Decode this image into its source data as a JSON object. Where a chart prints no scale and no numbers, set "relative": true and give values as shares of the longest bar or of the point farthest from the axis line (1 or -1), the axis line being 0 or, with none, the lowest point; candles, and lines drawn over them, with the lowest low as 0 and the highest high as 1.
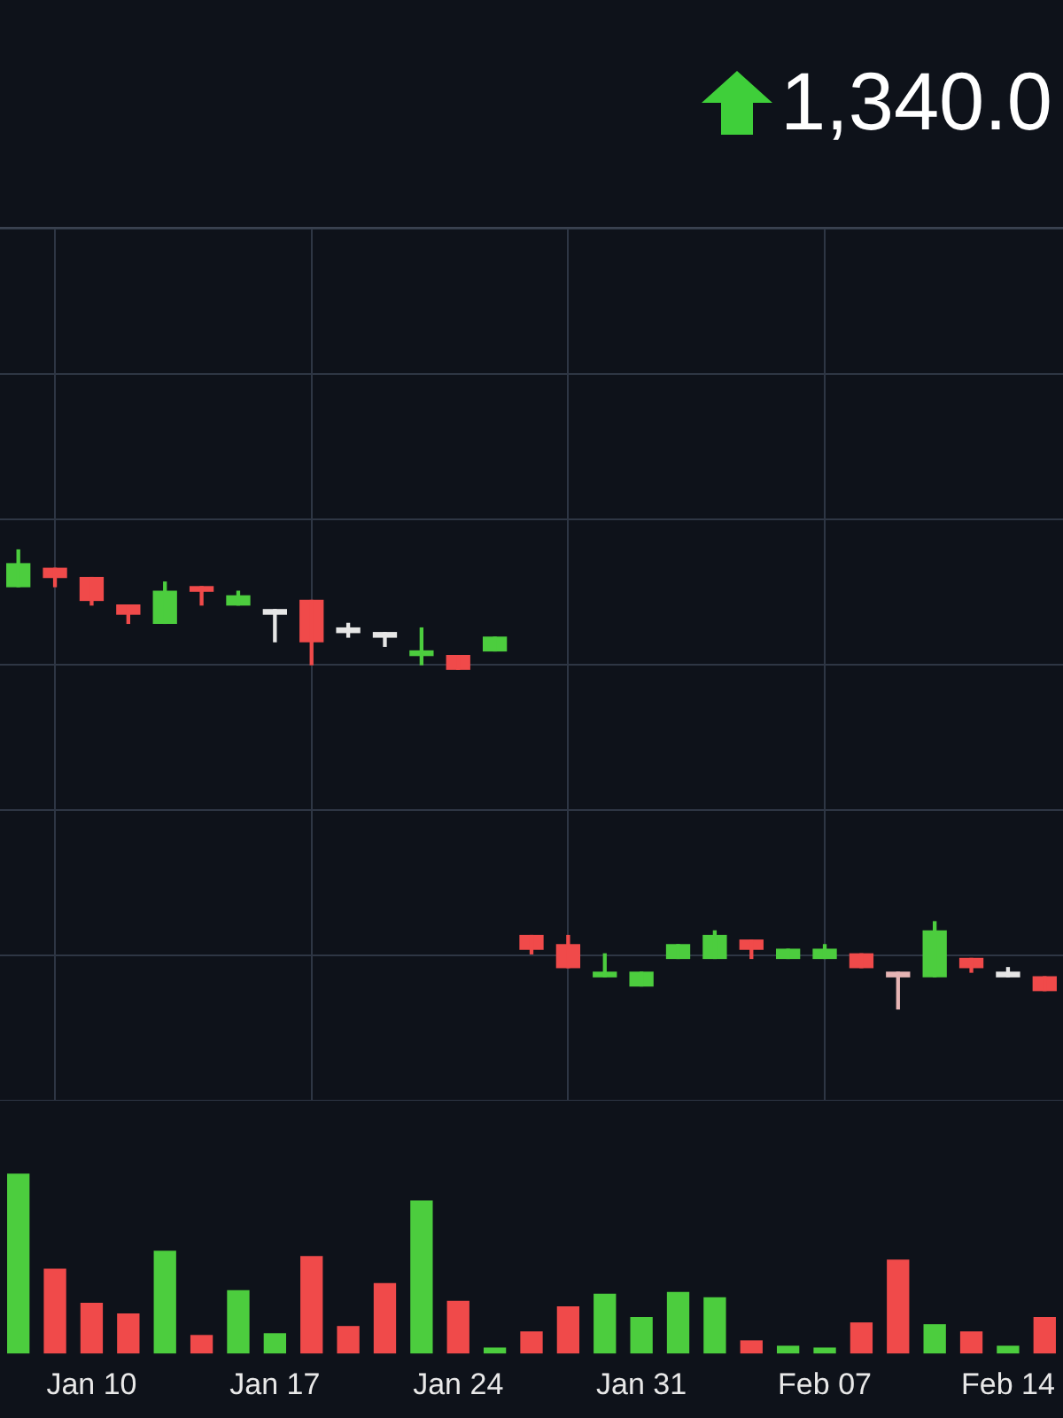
{
  "chart_data": [
    {
      "type": "candlestick",
      "annotations": [
        "1,340.0"
      ],
      "categories": [
        null,
        null,
        null,
        null,
        null,
        null,
        null,
        null,
        null,
        null,
        null,
        null,
        null,
        null,
        null,
        null,
        null,
        null,
        null,
        null,
        null,
        null,
        null,
        null,
        null,
        null,
        null,
        null,
        null
      ],
      "ohlc": [
        [
          0.92,
          1.0,
          0.92,
          0.97
        ],
        [
          0.96,
          0.96,
          0.92,
          0.94
        ],
        [
          0.94,
          0.94,
          0.88,
          0.89
        ],
        [
          0.88,
          0.88,
          0.84,
          0.86
        ],
        [
          0.84,
          0.93,
          0.84,
          0.91
        ],
        [
          0.92,
          0.92,
          0.88,
          0.91
        ],
        [
          0.88,
          0.91,
          0.88,
          0.9
        ],
        [
          0.87,
          0.87,
          0.8,
          0.86
        ],
        [
          0.89,
          0.89,
          0.75,
          0.8
        ],
        [
          0.83,
          0.84,
          0.81,
          0.82
        ],
        [
          0.82,
          0.82,
          0.79,
          0.81
        ],
        [
          0.77,
          0.83,
          0.75,
          0.78
        ],
        [
          0.77,
          0.77,
          0.74,
          0.74
        ],
        [
          0.78,
          0.81,
          0.78,
          0.81
        ],
        [
          0.16,
          0.16,
          0.12,
          0.13
        ],
        [
          0.14,
          0.16,
          0.09,
          0.09
        ],
        [
          0.07,
          0.12,
          0.07,
          0.08
        ],
        [
          0.05,
          0.08,
          0.05,
          0.08
        ],
        [
          0.11,
          0.14,
          0.11,
          0.14
        ],
        [
          0.11,
          0.17,
          0.11,
          0.16
        ],
        [
          0.15,
          0.15,
          0.11,
          0.13
        ],
        [
          0.11,
          0.13,
          0.11,
          0.13
        ],
        [
          0.11,
          0.14,
          0.11,
          0.13
        ],
        [
          0.12,
          0.12,
          0.09,
          0.09
        ],
        [
          0.08,
          0.08,
          0.0,
          0.07
        ],
        [
          0.07,
          0.19,
          0.07,
          0.17
        ],
        [
          0.11,
          0.11,
          0.08,
          0.09
        ],
        [
          0.08,
          0.09,
          0.07,
          0.07
        ],
        [
          0.07,
          0.07,
          0.04,
          0.04
        ]
      ],
      "colors": [
        "#4ccd3e",
        "#f04a4a",
        "#f04a4a",
        "#f04a4a",
        "#4ccd3e",
        "#f04a4a",
        "#4ccd3e",
        "#e6e6e6",
        "#f04a4a",
        "#e6e6e6",
        "#e6e6e6",
        "#4ccd3e",
        "#f04a4a",
        "#4ccd3e",
        "#f04a4a",
        "#f04a4a",
        "#4ccd3e",
        "#4ccd3e",
        "#4ccd3e",
        "#4ccd3e",
        "#f04a4a",
        "#4ccd3e",
        "#4ccd3e",
        "#f04a4a",
        "#e6b4b4",
        "#4ccd3e",
        "#f04a4a",
        "#e6e6e6",
        "#f04a4a"
      ],
      "relative": true,
      "grid": true,
      "tick_labels": false
    },
    {
      "type": "bar",
      "categories": [
        null,
        null,
        "Jan 10",
        null,
        null,
        null,
        null,
        "Jan 17",
        null,
        null,
        null,
        null,
        "Jan 24",
        null,
        null,
        null,
        null,
        "Jan 31",
        null,
        null,
        null,
        null,
        "Feb 07",
        null,
        null,
        null,
        null,
        "Feb 14",
        null
      ],
      "values": [
        1.0,
        0.47,
        0.28,
        0.22,
        0.57,
        0.1,
        0.35,
        0.11,
        0.54,
        0.15,
        0.39,
        0.85,
        0.29,
        0.03,
        0.12,
        0.26,
        0.33,
        0.2,
        0.34,
        0.31,
        0.07,
        0.04,
        0.03,
        0.17,
        0.52,
        0.16,
        0.12,
        0.04,
        0.2
      ],
      "colors": [
        "#4ccd3e",
        "#f04a4a",
        "#f04a4a",
        "#f04a4a",
        "#4ccd3e",
        "#f04a4a",
        "#4ccd3e",
        "#4ccd3e",
        "#f04a4a",
        "#f04a4a",
        "#f04a4a",
        "#4ccd3e",
        "#f04a4a",
        "#4ccd3e",
        "#f04a4a",
        "#f04a4a",
        "#4ccd3e",
        "#4ccd3e",
        "#4ccd3e",
        "#4ccd3e",
        "#f04a4a",
        "#4ccd3e",
        "#4ccd3e",
        "#f04a4a",
        "#f04a4a",
        "#4ccd3e",
        "#f04a4a",
        "#4ccd3e",
        "#f04a4a"
      ],
      "relative": true
    }
  ]
}
